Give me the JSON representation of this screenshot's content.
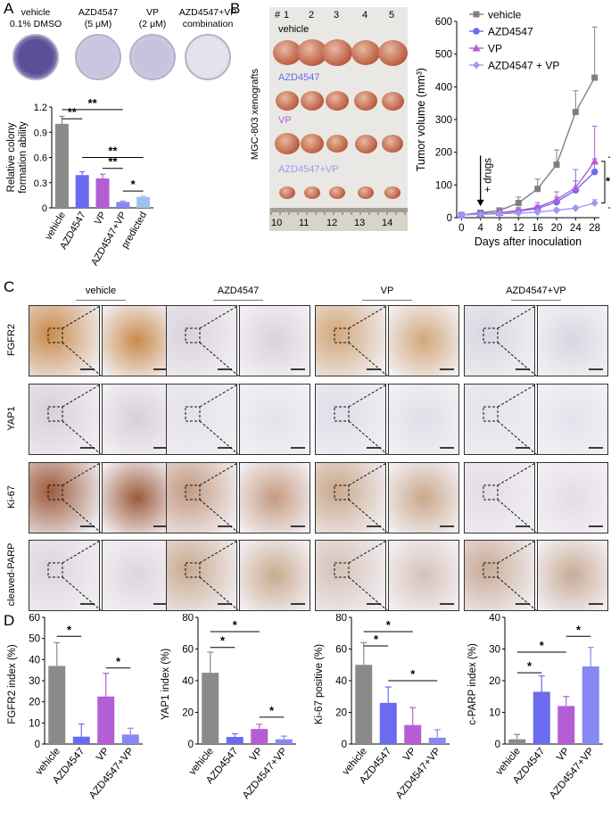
{
  "panelA": {
    "label": "A",
    "dishes": [
      {
        "line1": "vehicle",
        "line2": "0.1% DMSO",
        "tone": "#5b4f9a"
      },
      {
        "line1": "AZD4547",
        "line2": "(5 μM)",
        "tone": "#c9c4e0"
      },
      {
        "line1": "VP",
        "line2": "(2 μM)",
        "tone": "#c7c2de"
      },
      {
        "line1": "AZD4547+VP",
        "line2": "combination",
        "tone": "#e6e3ee"
      }
    ],
    "chart_data": {
      "type": "bar",
      "ylabel": "Relative colony formation ability",
      "ylabel_lines": [
        "Relative colony",
        "formation ability"
      ],
      "ylim": [
        0,
        1.2
      ],
      "yticks": [
        "0",
        "0.3",
        "0.6",
        "0.9",
        "1.2"
      ],
      "categories": [
        "vehicle",
        "AZD4547",
        "VP",
        "AZD4547+VP",
        "predicted"
      ],
      "values": [
        1.0,
        0.39,
        0.35,
        0.07,
        0.13
      ],
      "errors": [
        0.09,
        0.04,
        0.05,
        0.01,
        0.01
      ],
      "colors": [
        "#8a8a8a",
        "#6b6bf0",
        "#b45ed6",
        "#8787f5",
        "#9bc3ee"
      ],
      "significance": [
        "**",
        "**",
        "**",
        "**",
        "*"
      ]
    }
  },
  "panelB": {
    "label": "B",
    "photo": {
      "hash": "#",
      "numbers": [
        "1",
        "2",
        "3",
        "4",
        "5"
      ],
      "rows": [
        {
          "label": "vehicle",
          "color": "#000000"
        },
        {
          "label": "AZD4547",
          "color": "#6b6bf0"
        },
        {
          "label": "VP",
          "color": "#b45ed6"
        },
        {
          "label": "AZD4547+VP",
          "color": "#9a9af2"
        }
      ],
      "side_label": "MGC-803 xenografts",
      "ruler": [
        "10",
        "11",
        "12",
        "13",
        "14"
      ]
    },
    "chart_data": {
      "type": "line",
      "xlabel": "Days after inoculation",
      "ylabel": "Tumor volume (mm³)",
      "x": [
        0,
        4,
        8,
        12,
        16,
        20,
        24,
        28
      ],
      "ylim": [
        0,
        600
      ],
      "yticks": [
        "0",
        "100",
        "200",
        "300",
        "400",
        "500",
        "600"
      ],
      "annotation": "+ drugs",
      "series": [
        {
          "name": "vehicle",
          "color": "#808080",
          "marker": "square",
          "values": [
            8,
            15,
            22,
            45,
            88,
            162,
            323,
            428
          ],
          "errors": [
            3,
            5,
            8,
            18,
            30,
            45,
            65,
            155
          ]
        },
        {
          "name": "AZD4547",
          "color": "#6b6bf0",
          "marker": "circle",
          "values": [
            8,
            12,
            14,
            20,
            28,
            48,
            84,
            140
          ],
          "errors": [
            2,
            3,
            5,
            7,
            10,
            15,
            28,
            40
          ]
        },
        {
          "name": "VP",
          "color": "#b45ed6",
          "marker": "triangle",
          "values": [
            8,
            12,
            15,
            22,
            32,
            55,
            92,
            172
          ],
          "errors": [
            2,
            3,
            6,
            9,
            14,
            24,
            55,
            108
          ]
        },
        {
          "name": "AZD4547 + VP",
          "color": "#9a9af2",
          "marker": "diamond",
          "values": [
            8,
            10,
            12,
            14,
            17,
            23,
            29,
            45
          ],
          "errors": [
            2,
            2,
            3,
            3,
            4,
            5,
            6,
            10
          ]
        }
      ],
      "significance": [
        "*",
        "*"
      ]
    }
  },
  "panelC": {
    "label": "C",
    "columns": [
      "vehicle",
      "AZD4547",
      "VP",
      "AZD4547+VP"
    ],
    "rows": [
      {
        "label": "FGFR2",
        "tones": [
          "#c98a4a",
          "#d9d2dd",
          "#d2a77a",
          "#dad6e2"
        ]
      },
      {
        "label": "YAP1",
        "tones": [
          "#d8cfd7",
          "#e4e1ea",
          "#e0dde8",
          "#e4e2ec"
        ]
      },
      {
        "label": "Ki-67",
        "tones": [
          "#9c5a3a",
          "#c49a80",
          "#c9a88a",
          "#e2dde5"
        ]
      },
      {
        "label": "cleaved-PARP",
        "tones": [
          "#dcd6dc",
          "#c9aa8e",
          "#d6c2b8",
          "#c9ab96"
        ]
      }
    ]
  },
  "panelD": {
    "label": "D",
    "categories": [
      "vehicle",
      "AZD4547",
      "VP",
      "AZD4547+VP"
    ],
    "charts": [
      {
        "type": "bar",
        "ylabel": "FGFR2 index (%)",
        "ylim": [
          0,
          60
        ],
        "yticks": [
          "0",
          "10",
          "20",
          "30",
          "40",
          "50",
          "60"
        ],
        "values": [
          37,
          3.5,
          22.5,
          4.5
        ],
        "errors": [
          11,
          6,
          11,
          3
        ],
        "colors": [
          "#8a8a8a",
          "#6b6bf0",
          "#b45ed6",
          "#8787f5"
        ],
        "significance": [
          "*",
          "*"
        ]
      },
      {
        "type": "bar",
        "ylabel": "YAP1 index (%)",
        "ylim": [
          0,
          80
        ],
        "yticks": [
          "0",
          "20",
          "40",
          "60",
          "80"
        ],
        "values": [
          45,
          4.5,
          9.5,
          3
        ],
        "errors": [
          13,
          2,
          3,
          2
        ],
        "colors": [
          "#8a8a8a",
          "#6b6bf0",
          "#b45ed6",
          "#8787f5"
        ],
        "significance": [
          "*",
          "*",
          "*"
        ]
      },
      {
        "type": "bar",
        "ylabel": "Ki-67 positive (%)",
        "ylim": [
          0,
          80
        ],
        "yticks": [
          "0",
          "20",
          "40",
          "60",
          "80"
        ],
        "values": [
          50,
          26,
          12,
          4
        ],
        "errors": [
          14,
          10,
          11,
          5
        ],
        "colors": [
          "#8a8a8a",
          "#6b6bf0",
          "#b45ed6",
          "#8787f5"
        ],
        "significance": [
          "*",
          "*",
          "*"
        ]
      },
      {
        "type": "bar",
        "ylabel": "c-PARP index (%)",
        "ylim": [
          0,
          40
        ],
        "yticks": [
          "0",
          "10",
          "20",
          "30",
          "40"
        ],
        "values": [
          1.5,
          16.5,
          12,
          24.5
        ],
        "errors": [
          1.5,
          5,
          3,
          6
        ],
        "colors": [
          "#8a8a8a",
          "#6b6bf0",
          "#b45ed6",
          "#8787f5"
        ],
        "significance": [
          "*",
          "*",
          "*"
        ]
      }
    ]
  }
}
